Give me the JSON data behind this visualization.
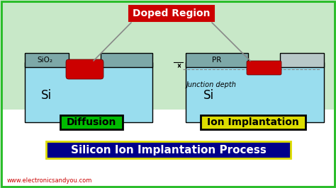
{
  "bg_top_color": "#c8e8c8",
  "bg_bottom_color": "#ffffff",
  "title": "Silicon Ion Implantation Process",
  "title_bg": "#00008B",
  "title_color": "#ffffff",
  "title_border": "#dddd00",
  "doped_label": "Doped Region",
  "doped_bg": "#cc0000",
  "doped_text_color": "#ffffff",
  "diffusion_label": "Diffusion",
  "diffusion_bg": "#00bb00",
  "diffusion_border": "#000000",
  "ion_label": "Ion Implantation",
  "ion_bg": "#dddd00",
  "ion_border": "#000000",
  "junction_label": "Junction depth",
  "sio2_label": "SiO₂",
  "pr_label": "PR",
  "si_label": "Si",
  "website": "www.electronicsandyou.com",
  "website_color": "#cc0000",
  "si_color": "#99ddee",
  "sio2_color": "#7da8a8",
  "pr_color": "#7da8a8",
  "pr_right_color": "#b8c8c8",
  "red_color": "#cc0000",
  "border_color": "#22bb22",
  "line_color": "#888888"
}
